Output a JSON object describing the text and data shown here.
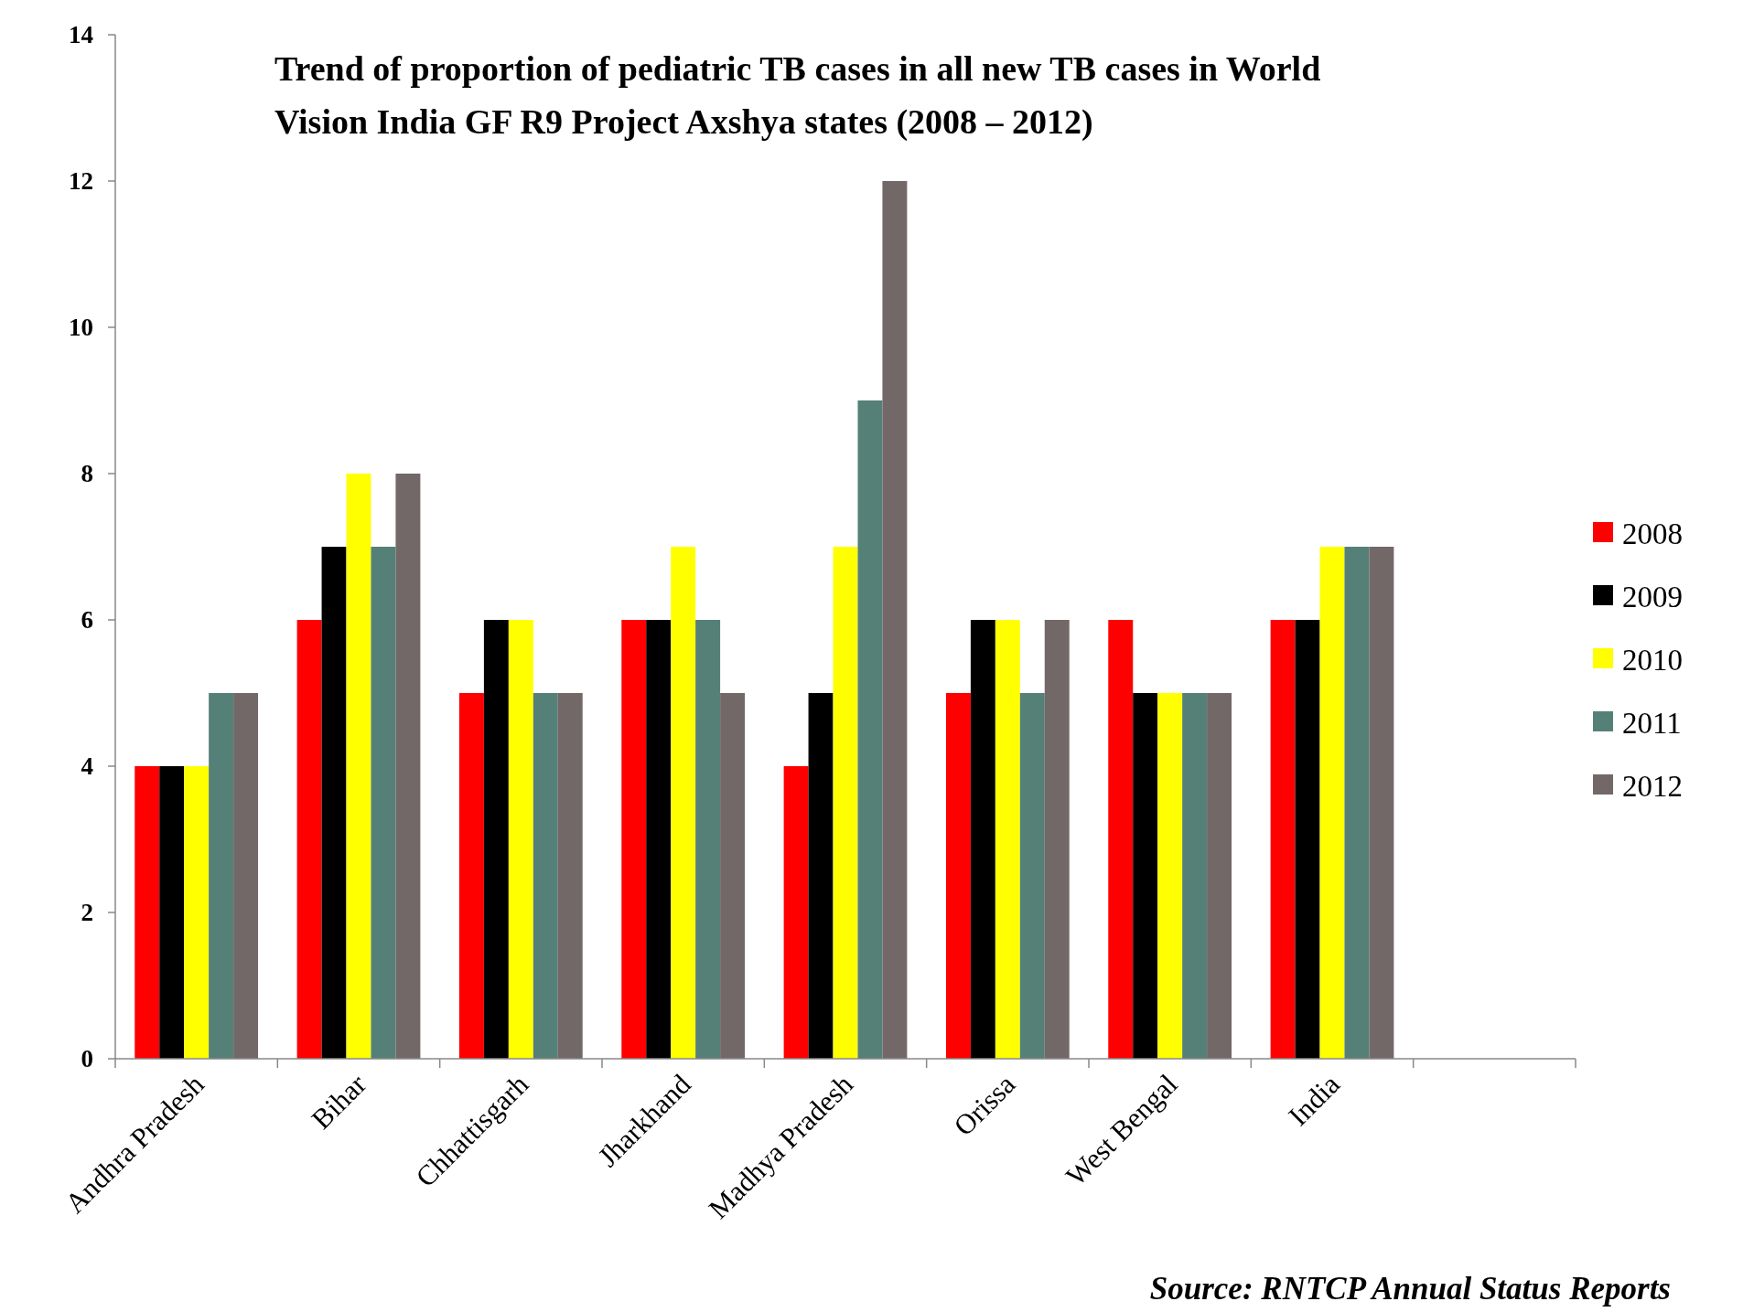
{
  "chart_data": {
    "type": "bar",
    "title": "Trend of proportion of pediatric TB cases in all new TB cases in World Vision India GF R9 Project Axshya states (2008 – 2012)",
    "categories": [
      "Andhra Pradesh",
      "Bihar",
      "Chhattisgarh",
      "Jharkhand",
      "Madhya Pradesh",
      "Orissa",
      "West Bengal",
      "India",
      null
    ],
    "series": [
      {
        "name": "2008",
        "color": "#ff0000",
        "values": [
          4,
          6,
          5,
          6,
          4,
          5,
          6,
          6,
          null
        ]
      },
      {
        "name": "2009",
        "color": "#000000",
        "values": [
          4,
          7,
          6,
          6,
          5,
          6,
          5,
          6,
          null
        ]
      },
      {
        "name": "2010",
        "color": "#ffff00",
        "values": [
          4,
          8,
          6,
          7,
          7,
          6,
          5,
          7,
          null
        ]
      },
      {
        "name": "2011",
        "color": "#558078",
        "values": [
          5,
          7,
          5,
          6,
          9,
          5,
          5,
          7,
          null
        ]
      },
      {
        "name": "2012",
        "color": "#736868",
        "values": [
          5,
          8,
          5,
          5,
          12,
          6,
          5,
          7,
          null
        ]
      }
    ],
    "ylim": [
      0,
      14
    ],
    "yticks": [
      0,
      2,
      4,
      6,
      8,
      10,
      12,
      14
    ],
    "grid": false,
    "legend": "right",
    "annotations": [
      "Source: RNTCP Annual Status Reports"
    ]
  }
}
